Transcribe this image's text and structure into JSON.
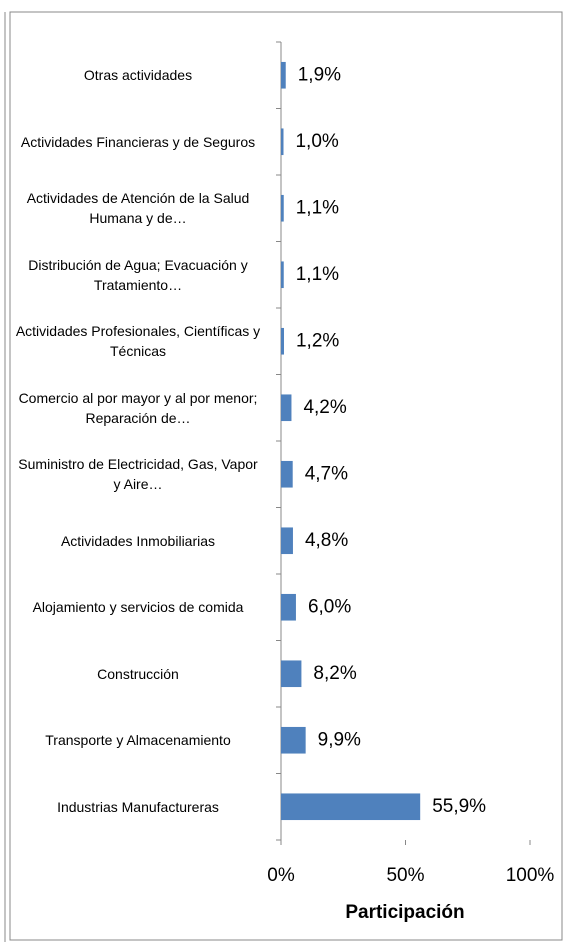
{
  "chart_data": {
    "type": "barh",
    "x_label": "Participación",
    "categories": [
      "Otras actividades",
      "Actividades Financieras y de Seguros",
      "Actividades de Atención de la Salud Humana y de…",
      "Distribución de Agua; Evacuación y Tratamiento…",
      "Actividades Profesionales, Científicas y Técnicas",
      "Comercio al por mayor y al por menor; Reparación de…",
      "Suministro de Electricidad, Gas, Vapor y Aire…",
      "Actividades Inmobiliarias",
      "Alojamiento y servicios de comida",
      "Construcción",
      "Transporte y Almacenamiento",
      "Industrias Manufactureras"
    ],
    "values": [
      1.9,
      1.0,
      1.1,
      1.1,
      1.2,
      4.2,
      4.7,
      4.8,
      6.0,
      8.2,
      9.9,
      55.9
    ],
    "value_labels": [
      "1,9%",
      "1,0%",
      "1,1%",
      "1,1%",
      "1,2%",
      "4,2%",
      "4,7%",
      "4,8%",
      "6,0%",
      "8,2%",
      "9,9%",
      "55,9%"
    ],
    "color": "#4f81bd",
    "xlim": [
      0,
      100
    ],
    "xticks": [
      {
        "value": 0,
        "label": "0%"
      },
      {
        "value": 50,
        "label": "50%"
      },
      {
        "value": 100,
        "label": "100%"
      }
    ]
  }
}
